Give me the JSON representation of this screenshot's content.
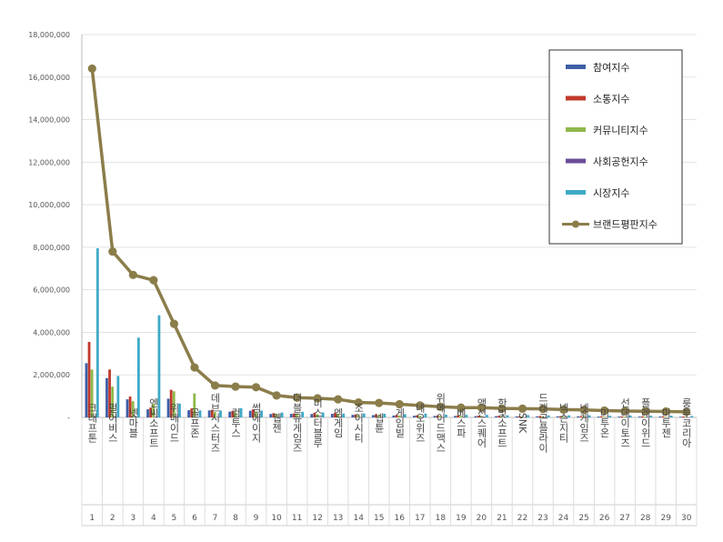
{
  "chart_data": {
    "type": "bar",
    "title": "",
    "xlabel": "",
    "ylabel": "",
    "ylim": [
      0,
      18000000
    ],
    "yticks": [
      0,
      2000000,
      4000000,
      6000000,
      8000000,
      10000000,
      12000000,
      14000000,
      16000000,
      18000000
    ],
    "ytick_labels": [
      "-",
      "2,000,000",
      "4,000,000",
      "6,000,000",
      "8,000,000",
      "10,000,000",
      "12,000,000",
      "14,000,000",
      "16,000,000",
      "18,000,000"
    ],
    "grid": true,
    "legend_position": "top-right",
    "categories": [
      "크래프톤",
      "펄어비스",
      "넷마블",
      "엔씨소프트",
      "위메이드",
      "골프존",
      "데브시스터즈",
      "컴투스",
      "썸에이지",
      "웹젠",
      "더블유게임즈",
      "미스터블루",
      "엠게임",
      "조이시티",
      "넵튠",
      "게임빌",
      "네오위즈",
      "위메이드맥스",
      "베스파",
      "액션스퀘어",
      "한빛소프트",
      "SNK",
      "드래곤플라이",
      "넥슨지티",
      "넷게임즈",
      "미투온",
      "선데이토즈",
      "플레이위드",
      "미투젠",
      "룽투코리아"
    ],
    "ranks": [
      "1",
      "2",
      "3",
      "4",
      "5",
      "6",
      "7",
      "8",
      "9",
      "10",
      "11",
      "12",
      "13",
      "14",
      "15",
      "16",
      "17",
      "18",
      "19",
      "20",
      "21",
      "22",
      "23",
      "24",
      "25",
      "26",
      "27",
      "28",
      "29",
      "30"
    ],
    "series": [
      {
        "name": "참여지수",
        "kind": "bar",
        "color": "#3f5fa8",
        "values": [
          2550000,
          1850000,
          850000,
          380000,
          880000,
          340000,
          330000,
          270000,
          310000,
          160000,
          170000,
          160000,
          170000,
          120000,
          110000,
          90000,
          80000,
          70000,
          70000,
          60000,
          60000,
          50000,
          50000,
          50000,
          50000,
          40000,
          40000,
          40000,
          40000,
          30000
        ]
      },
      {
        "name": "소통지수",
        "kind": "bar",
        "color": "#c0392b",
        "values": [
          3550000,
          2250000,
          980000,
          460000,
          1300000,
          420000,
          360000,
          300000,
          380000,
          200000,
          190000,
          220000,
          210000,
          140000,
          140000,
          110000,
          100000,
          90000,
          90000,
          80000,
          80000,
          60000,
          70000,
          60000,
          60000,
          50000,
          50000,
          50000,
          50000,
          40000
        ]
      },
      {
        "name": "커뮤니티지수",
        "kind": "bar",
        "color": "#8fb84a",
        "values": [
          2250000,
          1450000,
          760000,
          640000,
          1230000,
          1130000,
          250000,
          230000,
          260000,
          150000,
          150000,
          150000,
          170000,
          110000,
          110000,
          90000,
          80000,
          70000,
          70000,
          60000,
          60000,
          50000,
          50000,
          50000,
          50000,
          40000,
          40000,
          40000,
          40000,
          30000
        ]
      },
      {
        "name": "사회공헌지수",
        "kind": "bar",
        "color": "#6b4c9a",
        "values": [
          60000,
          50000,
          40000,
          40000,
          30000,
          30000,
          20000,
          20000,
          20000,
          10000,
          10000,
          10000,
          10000,
          10000,
          10000,
          10000,
          10000,
          10000,
          10000,
          10000,
          10000,
          10000,
          10000,
          10000,
          10000,
          10000,
          10000,
          10000,
          10000,
          10000
        ]
      },
      {
        "name": "시장지수",
        "kind": "bar",
        "color": "#3ea9c7",
        "values": [
          7950000,
          1950000,
          3750000,
          4800000,
          650000,
          330000,
          320000,
          430000,
          320000,
          230000,
          260000,
          230000,
          180000,
          180000,
          170000,
          150000,
          180000,
          130000,
          120000,
          120000,
          100000,
          110000,
          100000,
          100000,
          100000,
          80000,
          90000,
          80000,
          80000,
          70000
        ]
      },
      {
        "name": "브랜드평판지수",
        "kind": "line",
        "color": "#8b7d4a",
        "values": [
          16400000,
          7800000,
          6700000,
          6450000,
          4400000,
          2350000,
          1500000,
          1450000,
          1420000,
          1030000,
          930000,
          900000,
          850000,
          700000,
          680000,
          620000,
          560000,
          500000,
          460000,
          460000,
          420000,
          410000,
          400000,
          370000,
          350000,
          320000,
          300000,
          290000,
          280000,
          260000
        ]
      }
    ]
  }
}
